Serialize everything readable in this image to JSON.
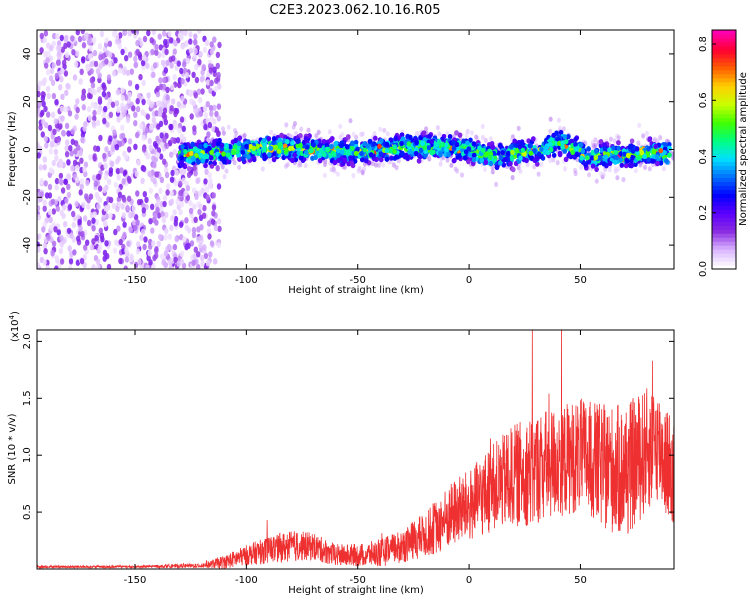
{
  "figure": {
    "title": "C2E3.2023.062.10.16.R05"
  },
  "colors": {
    "snr_line": "#ee3030",
    "spectrum_colormap": [
      "#ffffff",
      "#d9b3ff",
      "#8a2be2",
      "#5b00ff",
      "#0000ff",
      "#0070ff",
      "#00e0ff",
      "#00ff80",
      "#40ff00",
      "#c8ff00",
      "#ffd000",
      "#ff6000",
      "#ff0030",
      "#ff00b0"
    ]
  },
  "chart_data": [
    {
      "type": "heatmap",
      "title": "",
      "xlabel": "Height of straight line (km)",
      "ylabel": "Frequency (Hz)",
      "xlim": [
        -194,
        92
      ],
      "ylim": [
        -50,
        50
      ],
      "xticks": [
        -150,
        -100,
        -50,
        0,
        50
      ],
      "yticks": [
        -40,
        -20,
        0,
        20,
        40
      ],
      "colorbar": {
        "label": "Normalized spectral amplitude",
        "range": [
          0,
          0.85
        ],
        "ticks": [
          0.0,
          0.2,
          0.4,
          0.6,
          0.8
        ]
      },
      "regions": [
        {
          "x_range": [
            -194,
            -112
          ],
          "freq_range": [
            -50,
            50
          ],
          "amplitude": "low, noise-like"
        },
        {
          "x_range": [
            -130,
            90
          ],
          "freq_range": [
            -10,
            8
          ],
          "amplitude": "0.1-0.85, signal band centered near 0 Hz"
        }
      ],
      "centerline": {
        "x": [
          -130,
          -110,
          -90,
          -70,
          -50,
          -30,
          -10,
          0,
          10,
          30,
          40,
          50,
          55,
          60,
          70,
          80,
          88
        ],
        "hz": [
          -2,
          -1,
          1,
          0,
          -1,
          1,
          1,
          0,
          -3,
          -1,
          3,
          -1,
          -4,
          -2,
          -3,
          -1,
          -2
        ]
      }
    },
    {
      "type": "line",
      "title": "",
      "xlabel": "Height of straight line (km)",
      "ylabel": "SNR (10 * v/v)",
      "y_multiplier_label": "(x10",
      "y_multiplier_exp": "4",
      "y_multiplier_close": ")",
      "xlim": [
        -194,
        92
      ],
      "ylim": [
        0,
        2.1
      ],
      "xticks": [
        -150,
        -100,
        -50,
        0,
        50
      ],
      "yticks": [
        0.5,
        1.0,
        1.5,
        2.0
      ],
      "series": [
        {
          "x": [
            -194,
            -150,
            -120,
            -110,
            -100,
            -90,
            -80,
            -70,
            -60,
            -50,
            -40,
            -30,
            -20,
            -10,
            -5,
            0,
            10,
            20,
            30,
            40,
            50,
            60,
            70,
            80,
            85,
            92
          ],
          "y": [
            0.02,
            0.02,
            0.03,
            0.06,
            0.12,
            0.17,
            0.2,
            0.2,
            0.12,
            0.12,
            0.14,
            0.2,
            0.3,
            0.44,
            0.52,
            0.55,
            0.7,
            0.82,
            0.88,
            0.95,
            1.0,
            0.9,
            0.85,
            1.05,
            1.1,
            0.8
          ],
          "spread": [
            0.01,
            0.01,
            0.02,
            0.06,
            0.09,
            0.12,
            0.14,
            0.12,
            0.1,
            0.1,
            0.12,
            0.15,
            0.2,
            0.28,
            0.3,
            0.32,
            0.38,
            0.45,
            0.5,
            0.5,
            0.5,
            0.55,
            0.6,
            0.55,
            0.5,
            0.5
          ]
        }
      ]
    }
  ]
}
